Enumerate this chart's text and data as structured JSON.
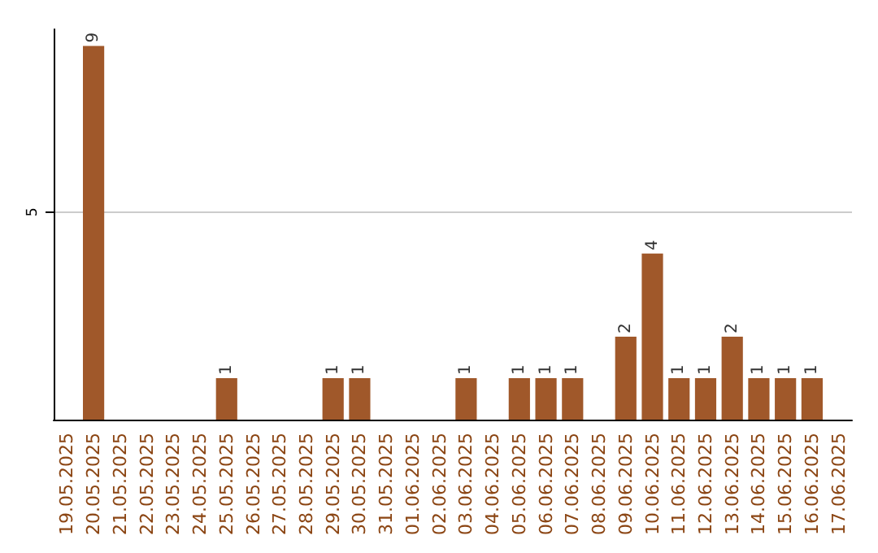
{
  "chart_data": {
    "type": "bar",
    "categories": [
      "19.05.2025",
      "20.05.2025",
      "21.05.2025",
      "22.05.2025",
      "23.05.2025",
      "24.05.2025",
      "25.05.2025",
      "26.05.2025",
      "27.05.2025",
      "28.05.2025",
      "29.05.2025",
      "30.05.2025",
      "31.05.2025",
      "01.06.2025",
      "02.06.2025",
      "03.06.2025",
      "04.06.2025",
      "05.06.2025",
      "06.06.2025",
      "07.06.2025",
      "08.06.2025",
      "09.06.2025",
      "10.06.2025",
      "11.06.2025",
      "12.06.2025",
      "13.06.2025",
      "14.06.2025",
      "15.06.2025",
      "16.06.2025",
      "17.06.2025"
    ],
    "values": [
      0,
      9,
      0,
      0,
      0,
      0,
      1,
      0,
      0,
      0,
      1,
      1,
      0,
      0,
      0,
      1,
      0,
      1,
      1,
      1,
      0,
      2,
      4,
      1,
      1,
      2,
      1,
      1,
      1,
      0
    ],
    "value_labels": [
      null,
      "9",
      null,
      null,
      null,
      null,
      "1",
      null,
      null,
      null,
      "1",
      "1",
      null,
      null,
      null,
      "1",
      null,
      "1",
      "1",
      "1",
      null,
      "2",
      "4",
      "1",
      "1",
      "2",
      "1",
      "1",
      "1",
      null
    ],
    "color": "#a0582a",
    "ylim": [
      0,
      9.4
    ],
    "yticks": [
      5
    ],
    "grid": "y"
  }
}
